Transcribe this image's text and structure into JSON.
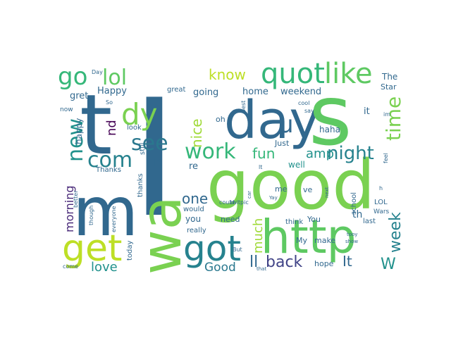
{
  "wordcloud": {
    "words": [
      {
        "text": "I",
        "color": "#31688e"
      },
      {
        "text": "good",
        "color": "#7ad151"
      },
      {
        "text": "day",
        "color": "#31688e"
      },
      {
        "text": "s",
        "color": "#5ec962"
      },
      {
        "text": "t",
        "color": "#31688e"
      },
      {
        "text": "m",
        "color": "#31688e"
      },
      {
        "text": "wa",
        "color": "#7ad151"
      },
      {
        "text": "http",
        "color": "#5ec962"
      },
      {
        "text": "get",
        "color": "#bddf26"
      },
      {
        "text": "got",
        "color": "#26828e"
      },
      {
        "text": "quot",
        "color": "#35b779"
      },
      {
        "text": "like",
        "color": "#5ec962"
      },
      {
        "text": "dy",
        "color": "#7ad151"
      },
      {
        "text": "go",
        "color": "#35b779"
      },
      {
        "text": "lol",
        "color": "#5ec962"
      },
      {
        "text": "u",
        "color": "#31688e"
      },
      {
        "text": "work",
        "color": "#35b779"
      },
      {
        "text": "see",
        "color": "#2a788e"
      },
      {
        "text": "com",
        "color": "#26828e"
      },
      {
        "text": "new",
        "color": "#21918c"
      },
      {
        "text": "time",
        "color": "#7ad151"
      },
      {
        "text": "know",
        "color": "#bddf26"
      },
      {
        "text": "nice",
        "color": "#a0da39"
      },
      {
        "text": "fun",
        "color": "#35b779"
      },
      {
        "text": "night",
        "color": "#26828e"
      },
      {
        "text": "amp",
        "color": "#21918c"
      },
      {
        "text": "nd",
        "color": "#440154"
      },
      {
        "text": "one",
        "color": "#31688e"
      },
      {
        "text": "n",
        "color": "#31688e"
      },
      {
        "text": "much",
        "color": "#a0da39"
      },
      {
        "text": "back",
        "color": "#414487"
      },
      {
        "text": "ll",
        "color": "#31688e"
      },
      {
        "text": "week",
        "color": "#26828e"
      },
      {
        "text": "W",
        "color": "#21918c"
      },
      {
        "text": "It",
        "color": "#31688e"
      },
      {
        "text": "love",
        "color": "#21918c"
      },
      {
        "text": "Good",
        "color": "#2a788e"
      },
      {
        "text": "morning",
        "color": "#482878"
      },
      {
        "text": "Happy",
        "color": "#31688e"
      },
      {
        "text": "going",
        "color": "#31688e"
      },
      {
        "text": "home",
        "color": "#31688e"
      },
      {
        "text": "weekend",
        "color": "#31688e"
      },
      {
        "text": "haha",
        "color": "#31688e"
      },
      {
        "text": "it",
        "color": "#31688e"
      },
      {
        "text": "The",
        "color": "#31688e"
      },
      {
        "text": "Star",
        "color": "#31688e"
      },
      {
        "text": "gret",
        "color": "#31688e"
      },
      {
        "text": "happy",
        "color": "#31688e"
      },
      {
        "text": "oh",
        "color": "#31688e"
      },
      {
        "text": "Just",
        "color": "#31688e"
      },
      {
        "text": "well",
        "color": "#21918c"
      },
      {
        "text": "re",
        "color": "#31688e"
      },
      {
        "text": "you",
        "color": "#31688e"
      },
      {
        "text": "would",
        "color": "#31688e"
      },
      {
        "text": "really",
        "color": "#31688e"
      },
      {
        "text": "need",
        "color": "#31688e"
      },
      {
        "text": "me",
        "color": "#31688e"
      },
      {
        "text": "ve",
        "color": "#31688e"
      },
      {
        "text": "th",
        "color": "#31688e"
      },
      {
        "text": "last",
        "color": "#31688e"
      },
      {
        "text": "school",
        "color": "#31688e"
      },
      {
        "text": "LOL",
        "color": "#31688e"
      },
      {
        "text": "Wars",
        "color": "#31688e"
      },
      {
        "text": "You",
        "color": "#31688e"
      },
      {
        "text": "think",
        "color": "#31688e"
      },
      {
        "text": "make",
        "color": "#31688e"
      },
      {
        "text": "My",
        "color": "#31688e"
      },
      {
        "text": "hope",
        "color": "#31688e"
      },
      {
        "text": "today",
        "color": "#31688e"
      },
      {
        "text": "Thanks",
        "color": "#31688e"
      },
      {
        "text": "thanks",
        "color": "#31688e"
      },
      {
        "text": "still",
        "color": "#31688e"
      },
      {
        "text": "look",
        "color": "#31688e"
      },
      {
        "text": "great",
        "color": "#31688e"
      },
      {
        "text": "now",
        "color": "#31688e"
      },
      {
        "text": "So",
        "color": "#31688e"
      },
      {
        "text": "Day",
        "color": "#31688e"
      },
      {
        "text": "best",
        "color": "#31688e"
      },
      {
        "text": "could",
        "color": "#31688e"
      },
      {
        "text": "cool",
        "color": "#31688e"
      },
      {
        "text": "say",
        "color": "#31688e"
      },
      {
        "text": "im",
        "color": "#31688e"
      },
      {
        "text": "feel",
        "color": "#31688e"
      },
      {
        "text": "lt",
        "color": "#31688e"
      },
      {
        "text": "car",
        "color": "#31688e"
      },
      {
        "text": "Yay",
        "color": "#31688e"
      },
      {
        "text": "twitpic",
        "color": "#31688e"
      },
      {
        "text": "next",
        "color": "#31688e"
      },
      {
        "text": "h",
        "color": "#31688e"
      },
      {
        "text": "But",
        "color": "#31688e"
      },
      {
        "text": "that",
        "color": "#31688e"
      },
      {
        "text": "tooy",
        "color": "#31688e"
      },
      {
        "text": "show",
        "color": "#31688e"
      },
      {
        "text": "come",
        "color": "#31688e"
      },
      {
        "text": "better",
        "color": "#31688e"
      },
      {
        "text": "though",
        "color": "#31688e"
      },
      {
        "text": "everyone",
        "color": "#31688e"
      }
    ]
  }
}
